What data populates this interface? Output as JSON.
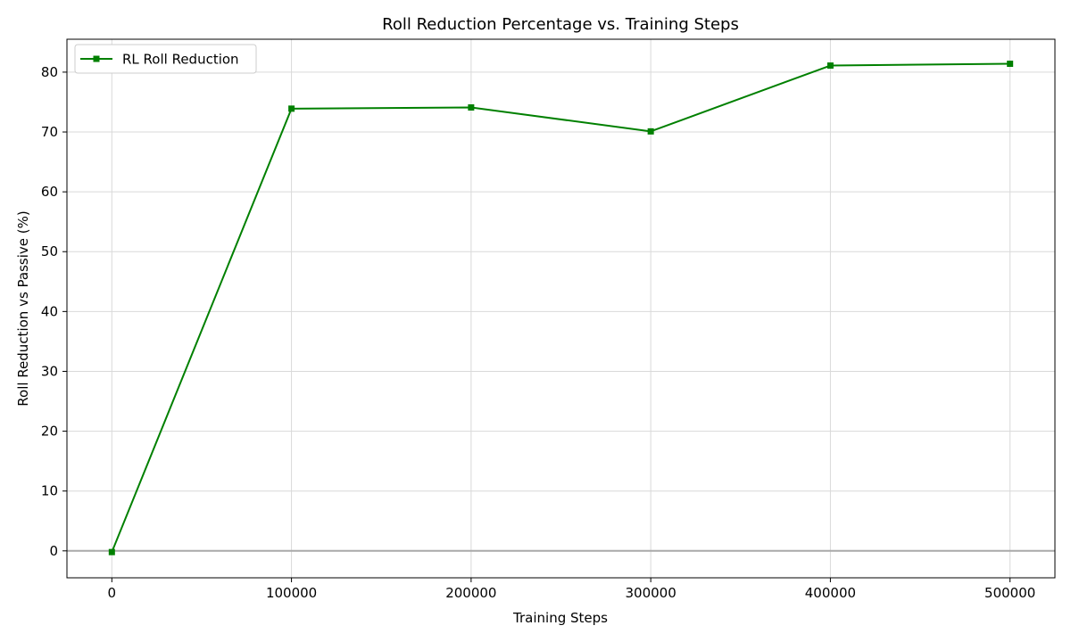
{
  "chart_data": {
    "type": "line",
    "title": "Roll Reduction Percentage vs. Training Steps",
    "xlabel": "Training Steps",
    "ylabel": "Roll Reduction vs Passive (%)",
    "xlim": [
      -25000,
      525000
    ],
    "ylim": [
      -4.5,
      85.5
    ],
    "xticks": [
      0,
      100000,
      200000,
      300000,
      400000,
      500000
    ],
    "xtick_labels": [
      "0",
      "100000",
      "200000",
      "300000",
      "400000",
      "500000"
    ],
    "yticks": [
      0,
      10,
      20,
      30,
      40,
      50,
      60,
      70,
      80
    ],
    "ytick_labels": [
      "0",
      "10",
      "20",
      "30",
      "40",
      "50",
      "60",
      "70",
      "80"
    ],
    "grid": true,
    "legend_position": "top-left",
    "reference_line": {
      "y": 0,
      "color": "#a9a9a9"
    },
    "series": [
      {
        "name": "RL Roll Reduction",
        "color": "#008000",
        "marker": "square",
        "x": [
          0,
          100000,
          200000,
          300000,
          400000,
          500000
        ],
        "y": [
          -0.2,
          73.9,
          74.1,
          70.1,
          81.1,
          81.4
        ]
      }
    ]
  }
}
